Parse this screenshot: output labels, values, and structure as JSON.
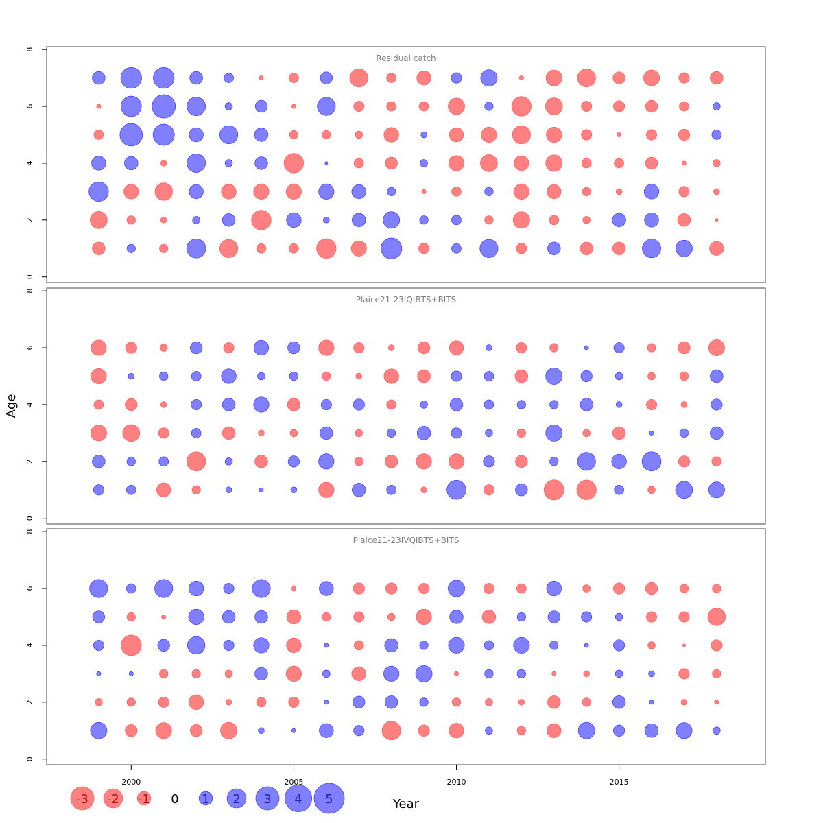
{
  "chart_data": {
    "type": "scatter",
    "subtype": "bubble-residuals",
    "xlabel": "Year",
    "ylabel": "Age",
    "x_ticks": [
      2000,
      2005,
      2010,
      2015
    ],
    "y_ticks": [
      0,
      2,
      4,
      6,
      8
    ],
    "xlim": [
      1997.4,
      2019.5
    ],
    "ylim": [
      -0.2,
      8.1
    ],
    "years": [
      1999,
      2000,
      2001,
      2002,
      2003,
      2004,
      2005,
      2006,
      2007,
      2008,
      2009,
      2010,
      2011,
      2012,
      2013,
      2014,
      2015,
      2016,
      2017,
      2018
    ],
    "colors": {
      "positive": "#8080ff",
      "negative": "#ff8080",
      "positive_stroke": "#3a3aff",
      "negative_stroke": "#ff5a5a",
      "positive_text": "#2222aa",
      "negative_text": "#b01515"
    },
    "panels": [
      {
        "title": "Residual catch",
        "ages": [
          1,
          2,
          3,
          4,
          5,
          6,
          7
        ],
        "values": [
          [
            -0.9,
            -1.6,
            2.1,
            1.1,
            -0.5,
            -0.1,
            0.9
          ],
          [
            0.4,
            -0.4,
            -1.2,
            1.0,
            2.8,
            2.3,
            2.4
          ],
          [
            -0.4,
            -0.2,
            -1.7,
            -0.2,
            2.5,
            3.0,
            2.4
          ],
          [
            2.0,
            0.3,
            1.1,
            1.9,
            1.1,
            1.9,
            0.9
          ],
          [
            -1.8,
            0.9,
            -1.2,
            0.3,
            1.8,
            0.3,
            0.5
          ],
          [
            -0.5,
            -2.1,
            -1.3,
            0.9,
            1.0,
            0.8,
            -0.1
          ],
          [
            -0.5,
            1.2,
            -1.3,
            -2.1,
            -0.4,
            -0.1,
            -0.5
          ],
          [
            -2.1,
            0.2,
            1.3,
            0.05,
            -0.4,
            1.8,
            0.8
          ],
          [
            -1.3,
            1.0,
            1.1,
            -0.5,
            -0.3,
            -0.6,
            -1.8
          ],
          [
            2.4,
            1.5,
            0.4,
            -0.8,
            -1.2,
            -0.5,
            -0.5
          ],
          [
            -0.6,
            0.4,
            -0.1,
            0.3,
            0.2,
            -0.5,
            -1.1
          ],
          [
            0.5,
            0.5,
            -0.5,
            -1.3,
            -1.1,
            -1.5,
            0.6
          ],
          [
            1.8,
            -0.4,
            0.4,
            -1.6,
            -1.3,
            0.4,
            1.5
          ],
          [
            -0.6,
            -1.5,
            -1.3,
            -1.2,
            -1.8,
            -2.1,
            -0.1
          ],
          [
            0.9,
            -0.5,
            -1.1,
            -1.5,
            -1.3,
            -1.6,
            -1.4
          ],
          [
            -0.9,
            -0.3,
            -0.4,
            -0.5,
            -0.6,
            -0.6,
            -1.8
          ],
          [
            -0.9,
            1.0,
            -0.2,
            -0.5,
            -0.1,
            -0.7,
            -0.8
          ],
          [
            1.9,
            1.1,
            1.2,
            -0.8,
            -0.6,
            -0.8,
            -1.4
          ],
          [
            1.5,
            -0.9,
            -0.6,
            -0.1,
            -0.7,
            -0.5,
            -0.6
          ],
          [
            -1.1,
            -0.05,
            -0.2,
            -0.3,
            0.5,
            0.3,
            -0.9
          ]
        ]
      },
      {
        "title": "Plaice21-23IQIBTS+BITS",
        "ages": [
          1,
          2,
          3,
          4,
          5,
          6
        ],
        "values": [
          [
            0.6,
            0.9,
            -1.4,
            -0.5,
            -1.3,
            -1.3
          ],
          [
            0.5,
            0.4,
            -1.6,
            -0.8,
            0.2,
            -0.7
          ],
          [
            -1.1,
            0.5,
            -0.6,
            -0.2,
            0.4,
            -0.3
          ],
          [
            -0.4,
            -2.0,
            0.5,
            0.6,
            0.5,
            0.8
          ],
          [
            0.2,
            0.3,
            -0.9,
            0.9,
            1.2,
            -0.6
          ],
          [
            0.1,
            -0.9,
            -0.2,
            1.3,
            0.3,
            1.2
          ],
          [
            0.2,
            0.7,
            -0.3,
            -0.9,
            0.4,
            0.8
          ],
          [
            -1.3,
            1.3,
            0.9,
            0.6,
            -0.4,
            -1.3
          ],
          [
            1.0,
            -0.4,
            -0.3,
            0.7,
            -0.2,
            -0.6
          ],
          [
            0.5,
            -0.9,
            0.4,
            -0.5,
            -1.2,
            -0.2
          ],
          [
            -0.2,
            -1.3,
            1.0,
            0.3,
            -0.9,
            -0.8
          ],
          [
            2.0,
            -1.3,
            0.6,
            0.9,
            0.6,
            -1.1
          ],
          [
            -0.6,
            0.7,
            0.3,
            0.5,
            0.5,
            0.2
          ],
          [
            0.8,
            -0.8,
            -0.4,
            0.4,
            -0.9,
            -0.6
          ],
          [
            -2.2,
            0.4,
            1.5,
            0.4,
            1.5,
            -0.4
          ],
          [
            -2.1,
            1.8,
            -0.3,
            0.9,
            0.7,
            0.1
          ],
          [
            0.5,
            1.2,
            -0.9,
            0.2,
            0.3,
            0.6
          ],
          [
            -0.3,
            2.0,
            0.1,
            -0.6,
            -0.3,
            -0.4
          ],
          [
            1.6,
            -0.7,
            0.4,
            -0.2,
            -0.4,
            -0.8
          ],
          [
            1.4,
            -0.5,
            0.9,
            0.7,
            0.9,
            -1.4
          ]
        ]
      },
      {
        "title": "Plaice21-23IVQIBTS+BITS",
        "ages": [
          1,
          2,
          3,
          4,
          5,
          6
        ],
        "values": [
          [
            1.5,
            -0.3,
            0.1,
            0.6,
            0.8,
            1.8
          ],
          [
            -0.8,
            -0.4,
            0.1,
            -2.3,
            -0.4,
            0.5
          ],
          [
            -1.4,
            -0.6,
            -0.4,
            0.8,
            -0.1,
            1.8
          ],
          [
            -0.8,
            -1.2,
            -0.4,
            1.7,
            1.3,
            1.2
          ],
          [
            -1.5,
            -0.2,
            -0.3,
            0.6,
            0.9,
            0.6
          ],
          [
            0.2,
            -0.5,
            0.9,
            1.3,
            0.9,
            1.8
          ],
          [
            0.1,
            -0.6,
            -1.3,
            -1.2,
            -1.1,
            -0.1
          ],
          [
            1.1,
            0.1,
            0.3,
            0.1,
            -0.4,
            1.1
          ],
          [
            0.6,
            0.8,
            -1.1,
            -0.5,
            -0.6,
            -0.7
          ],
          [
            -1.9,
            0.9,
            1.3,
            1.0,
            -0.3,
            -0.7
          ],
          [
            -0.7,
            0.4,
            1.5,
            0.4,
            -1.3,
            -0.6
          ],
          [
            -1.2,
            -0.4,
            -0.1,
            1.4,
            1.0,
            1.5
          ],
          [
            0.3,
            -0.3,
            0.4,
            0.5,
            -1.0,
            -0.6
          ],
          [
            -0.4,
            -0.2,
            0.4,
            1.4,
            0.4,
            -0.5
          ],
          [
            -1.1,
            -0.9,
            -0.1,
            0.4,
            0.8,
            1.2
          ],
          [
            1.5,
            -0.4,
            -0.2,
            0.1,
            0.6,
            -0.3
          ],
          [
            0.7,
            0.9,
            0.3,
            0.7,
            0.3,
            -0.7
          ],
          [
            1.0,
            0.1,
            0.2,
            -0.3,
            -0.6,
            -0.8
          ],
          [
            1.4,
            -0.2,
            -0.6,
            -0.05,
            -0.6,
            -0.4
          ],
          [
            0.3,
            -0.1,
            -0.4,
            -0.7,
            -1.7,
            -0.4
          ]
        ]
      }
    ],
    "legend": {
      "placement": "bottom-left",
      "entries": [
        {
          "label": "-3",
          "value": -3
        },
        {
          "label": "-2",
          "value": -2
        },
        {
          "label": "-1",
          "value": -1
        },
        {
          "label": "0",
          "value": 0
        },
        {
          "label": "1",
          "value": 1
        },
        {
          "label": "2",
          "value": 2
        },
        {
          "label": "3",
          "value": 3
        },
        {
          "label": "4",
          "value": 4
        },
        {
          "label": "5",
          "value": 5
        }
      ]
    }
  }
}
